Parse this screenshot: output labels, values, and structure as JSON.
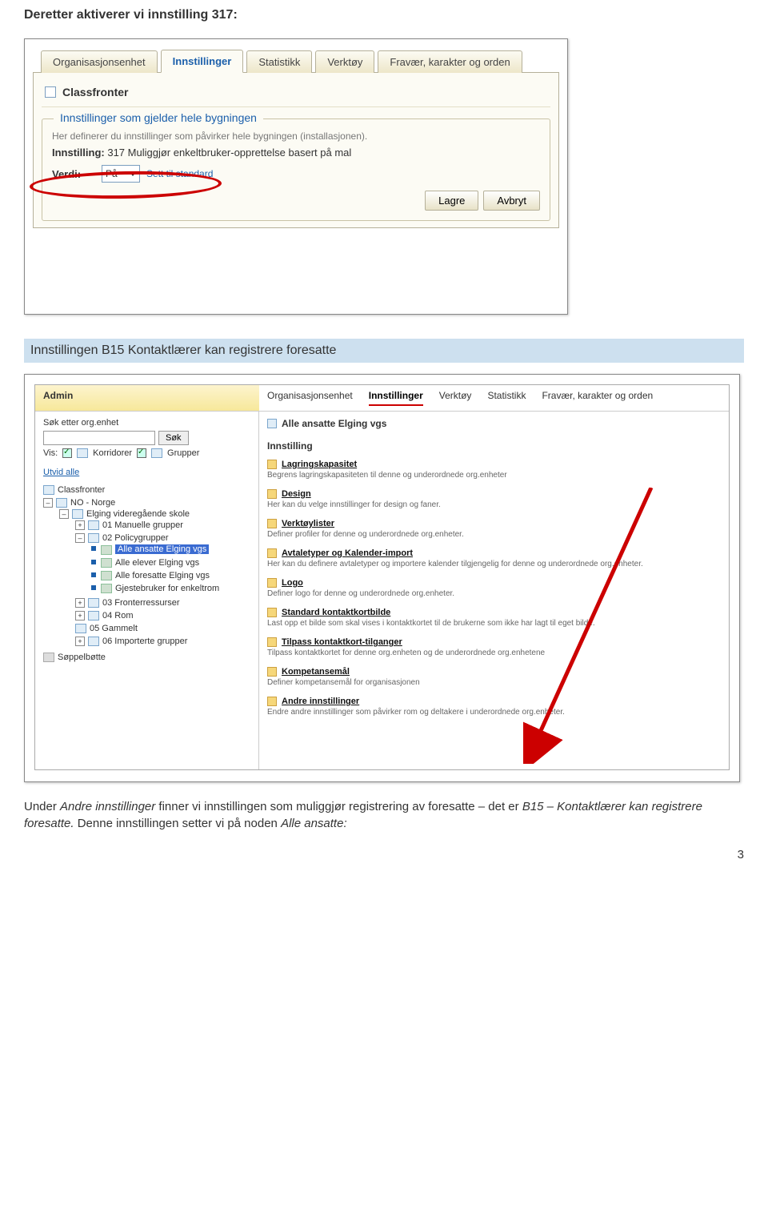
{
  "doc": {
    "heading": "Deretter aktiverer vi innstilling 317:",
    "subsection_title": "Innstillingen B15 Kontaktlærer kan registrere foresatte",
    "body_html_parts": [
      "Under ",
      "Andre innstillinger",
      " finner vi innstillingen som muliggjør registrering av foresatte – det er ",
      "B15 – Kontaktlærer kan registrere foresatte.",
      " Denne innstillingen setter vi på noden ",
      "Alle ansatte:"
    ],
    "page_number": "3"
  },
  "shot1": {
    "tabs": [
      "Organisasjonsenhet",
      "Innstillinger",
      "Statistikk",
      "Verktøy",
      "Fravær, karakter og orden"
    ],
    "active_tab": 1,
    "classfronter_label": "Classfronter",
    "fieldset_legend": "Innstillinger som gjelder hele bygningen",
    "gray_sub": "Her definerer du innstillinger som påvirker hele bygningen (installasjonen).",
    "setting_label": "Innstilling:",
    "setting_value": "317 Muliggjør enkeltbruker-opprettelse basert på mal",
    "verdi_label": "Verdi:",
    "verdi_value": "På",
    "sett_standard": "Sett til standard",
    "buttons": [
      "Lagre",
      "Avbryt"
    ]
  },
  "shot2": {
    "admin_label": "Admin",
    "tabs": [
      "Organisasjonsenhet",
      "Innstillinger",
      "Verktøy",
      "Statistikk",
      "Fravær, karakter og orden"
    ],
    "active_tab": 1,
    "left": {
      "search_label": "Søk etter org.enhet",
      "search_btn": "Søk",
      "vis_label": "Vis:",
      "korr_label": "Korridorer",
      "grp_label": "Grupper",
      "utvid": "Utvid alle",
      "tree": {
        "classfronter": "Classfronter",
        "no": "NO - Norge",
        "elging": "Elging videregående skole",
        "n01": "01 Manuelle grupper",
        "n02": "02 Policygrupper",
        "g1": "Alle ansatte Elging vgs",
        "g2": "Alle elever Elging vgs",
        "g3": "Alle foresatte Elging vgs",
        "g4": "Gjestebruker for enkeltrom",
        "n03": "03 Fronterressurser",
        "n04": "04 Rom",
        "n05": "05 Gammelt",
        "n06": "06 Importerte grupper",
        "trash": "Søppelbøtte"
      }
    },
    "right": {
      "title": "Alle ansatte Elging vgs",
      "section_header": "Innstilling",
      "items": [
        {
          "head": "Lagringskapasitet",
          "sub": "Begrens lagringskapasiteten til denne og underordnede org.enheter"
        },
        {
          "head": "Design",
          "sub": "Her kan du velge innstillinger for design og faner."
        },
        {
          "head": "Verktøylister",
          "sub": "Definer profiler for denne og underordnede org.enheter."
        },
        {
          "head": "Avtaletyper og Kalender-import",
          "sub": "Her kan du definere avtaletyper og importere kalender tilgjengelig for denne og underordnede org.enheter."
        },
        {
          "head": "Logo",
          "sub": "Definer logo for denne og underordnede org.enheter."
        },
        {
          "head": "Standard kontaktkortbilde",
          "sub": "Last opp et bilde som skal vises i kontaktkortet til de brukerne som ikke har lagt til eget bilde."
        },
        {
          "head": "Tilpass kontaktkort-tilganger",
          "sub": "Tilpass kontaktkortet for denne org.enheten og de underordnede org.enhetene"
        },
        {
          "head": "Kompetansemål",
          "sub": "Definer kompetansemål for organisasjonen"
        },
        {
          "head": "Andre innstillinger",
          "sub": "Endre andre innstillinger som påvirker rom og deltakere i underordnede org.enheter."
        }
      ]
    }
  }
}
